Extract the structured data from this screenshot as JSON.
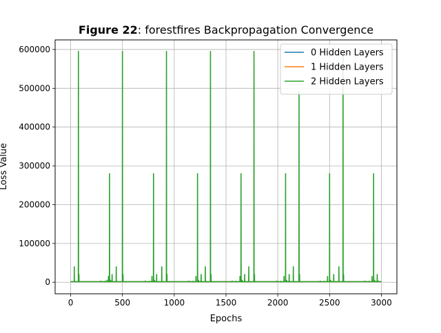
{
  "chart_data": {
    "type": "line",
    "title_bold": "Figure 22",
    "title_rest": ": forestfires Backpropagation Convergence",
    "xlabel": "Epochs",
    "ylabel": "Loss Value",
    "xlim": [
      -150,
      3150
    ],
    "ylim": [
      -29750,
      624750
    ],
    "xticks": [
      0,
      500,
      1000,
      1500,
      2000,
      2500,
      3000
    ],
    "yticks": [
      0,
      100000,
      200000,
      300000,
      400000,
      500000,
      600000
    ],
    "grid": true,
    "legend_position": "top-right",
    "baseline": 1500,
    "series": [
      {
        "name": "0 Hidden Layers",
        "color": "#1f77b4",
        "spikes": []
      },
      {
        "name": "1 Hidden Layers",
        "color": "#ff7f0e",
        "spikes": []
      },
      {
        "name": "2 Hidden Layers",
        "color": "#2ca02c",
        "spikes": [
          [
            35,
            40000
          ],
          [
            75,
            595000
          ],
          [
            80,
            20000
          ],
          [
            290,
            3000
          ],
          [
            330,
            2500
          ],
          [
            350,
            5000
          ],
          [
            365,
            15000
          ],
          [
            375,
            280000
          ],
          [
            385,
            5000
          ],
          [
            400,
            20000
          ],
          [
            440,
            40000
          ],
          [
            500,
            595000
          ],
          [
            505,
            20000
          ],
          [
            720,
            3000
          ],
          [
            760,
            2500
          ],
          [
            785,
            15000
          ],
          [
            800,
            280000
          ],
          [
            810,
            5000
          ],
          [
            830,
            20000
          ],
          [
            880,
            40000
          ],
          [
            925,
            595000
          ],
          [
            930,
            20000
          ],
          [
            1140,
            3000
          ],
          [
            1180,
            2500
          ],
          [
            1210,
            15000
          ],
          [
            1225,
            280000
          ],
          [
            1235,
            5000
          ],
          [
            1260,
            20000
          ],
          [
            1300,
            40000
          ],
          [
            1350,
            595000
          ],
          [
            1355,
            20000
          ],
          [
            1560,
            3000
          ],
          [
            1600,
            2500
          ],
          [
            1635,
            15000
          ],
          [
            1645,
            280000
          ],
          [
            1655,
            5000
          ],
          [
            1680,
            20000
          ],
          [
            1720,
            40000
          ],
          [
            1770,
            595000
          ],
          [
            1775,
            20000
          ],
          [
            1990,
            3000
          ],
          [
            2030,
            2500
          ],
          [
            2060,
            15000
          ],
          [
            2075,
            280000
          ],
          [
            2085,
            5000
          ],
          [
            2110,
            20000
          ],
          [
            2150,
            40000
          ],
          [
            2205,
            490000
          ],
          [
            2210,
            20000
          ],
          [
            2410,
            3000
          ],
          [
            2450,
            2500
          ],
          [
            2480,
            15000
          ],
          [
            2500,
            280000
          ],
          [
            2510,
            5000
          ],
          [
            2540,
            20000
          ],
          [
            2590,
            40000
          ],
          [
            2630,
            590000
          ],
          [
            2635,
            20000
          ],
          [
            2840,
            3000
          ],
          [
            2880,
            2500
          ],
          [
            2910,
            15000
          ],
          [
            2925,
            280000
          ],
          [
            2935,
            5000
          ],
          [
            2960,
            20000
          ],
          [
            2970,
            3000
          ]
        ]
      }
    ]
  }
}
